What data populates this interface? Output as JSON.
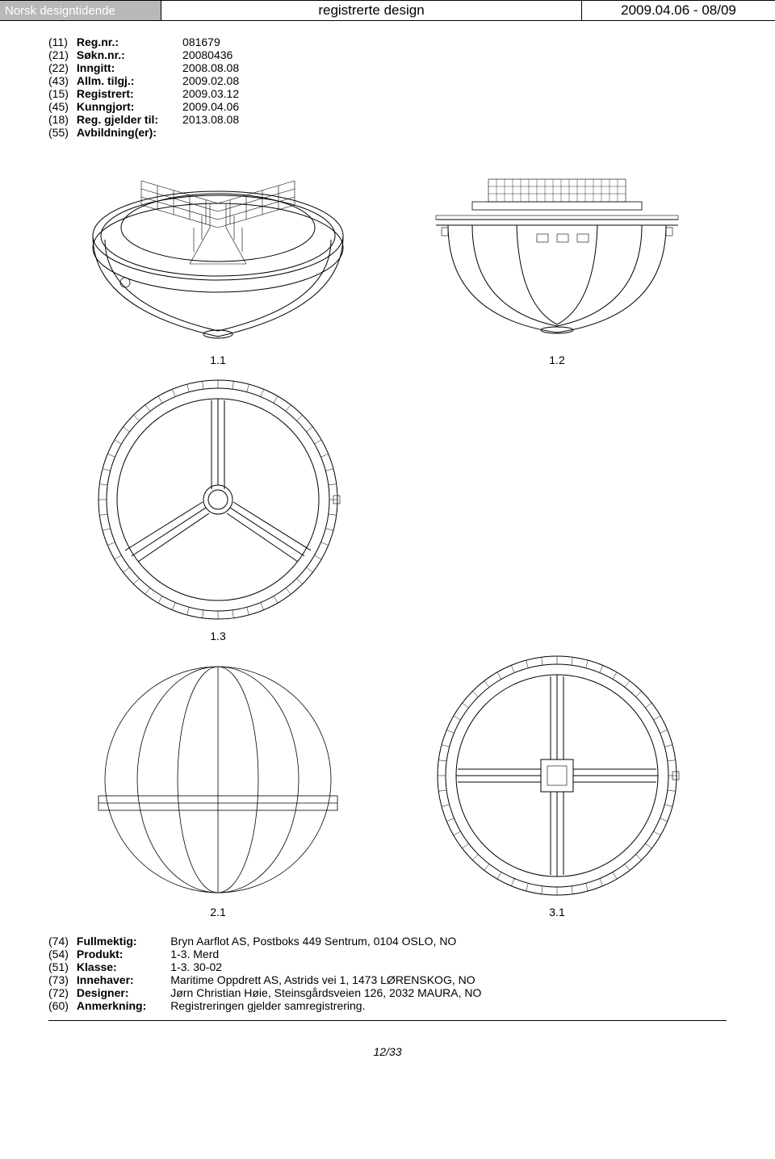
{
  "header": {
    "left": "Norsk designtidende",
    "center": "registrerte design",
    "right": "2009.04.06 - 08/09"
  },
  "topFields": [
    {
      "code": "(11)",
      "label": "Reg.nr.:",
      "value": "081679"
    },
    {
      "code": "(21)",
      "label": "Søkn.nr.:",
      "value": "20080436"
    },
    {
      "code": "(22)",
      "label": "Inngitt:",
      "value": "2008.08.08"
    },
    {
      "code": "(43)",
      "label": "Allm. tilgj.:",
      "value": "2009.02.08"
    },
    {
      "code": "(15)",
      "label": "Registrert:",
      "value": "2009.03.12"
    },
    {
      "code": "(45)",
      "label": "Kunngjort:",
      "value": "2009.04.06"
    },
    {
      "code": "(18)",
      "label": "Reg. gjelder til:",
      "value": "2013.08.08"
    },
    {
      "code": "(55)",
      "label": "Avbildning(er):",
      "value": ""
    }
  ],
  "figureLabels": {
    "f11": "1.1",
    "f12": "1.2",
    "f13": "1.3",
    "f21": "2.1",
    "f31": "3.1"
  },
  "bottomFields": [
    {
      "code": "(74)",
      "label": "Fullmektig:",
      "value": "Bryn Aarflot AS, Postboks 449 Sentrum, 0104 OSLO, NO"
    },
    {
      "code": "(54)",
      "label": "Produkt:",
      "value": "1-3. Merd"
    },
    {
      "code": "(51)",
      "label": "Klasse:",
      "value": "1-3. 30-02"
    },
    {
      "code": "(73)",
      "label": "Innehaver:",
      "value": "Maritime Oppdrett AS, Astrids vei 1, 1473 LØRENSKOG, NO"
    },
    {
      "code": "(72)",
      "label": "Designer:",
      "value": "Jørn Christian Høie, Steinsgårdsveien 126, 2032 MAURA, NO"
    },
    {
      "code": "(60)",
      "label": "Anmerkning:",
      "value": "Registreringen gjelder samregistrering."
    }
  ],
  "pageNumber": "12/33",
  "style": {
    "stroke": "#000000",
    "strokeWidth": 1,
    "thinStrokeWidth": 0.6,
    "background": "#ffffff",
    "barFill": "#b8b8b8"
  }
}
